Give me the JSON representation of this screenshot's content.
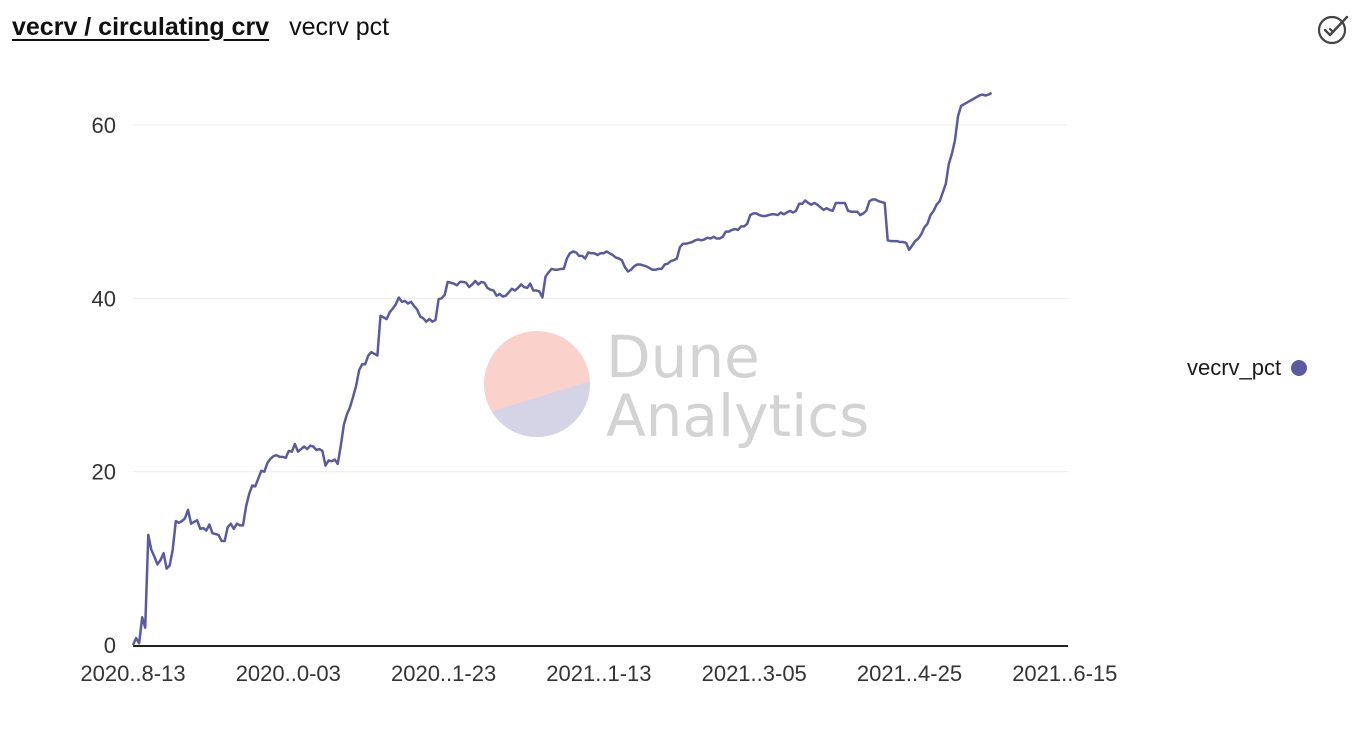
{
  "header": {
    "title": "vecrv / circulating crv",
    "subtitle": "vecrv pct"
  },
  "icons": {
    "status": "check-circle-icon"
  },
  "watermark": {
    "line1": "Dune",
    "line2": "Analytics"
  },
  "colors": {
    "line": "#5a5aa0",
    "grid": "#ebebeb",
    "axis": "#222222",
    "wm_top": "#fbd2cb",
    "wm_bottom": "#d4d4e6"
  },
  "chart_data": {
    "type": "line",
    "xlabel": "",
    "ylabel": "",
    "x_ticks": [
      "2020..8-13",
      "2020..0-03",
      "2020..1-23",
      "2021..1-13",
      "2021..3-05",
      "2021..4-25",
      "2021..6-15"
    ],
    "y_ticks": [
      0,
      20,
      40,
      60
    ],
    "ylim": [
      0,
      65
    ],
    "xlim": [
      0,
      306
    ],
    "grid": true,
    "legend_position": "right",
    "series": [
      {
        "name": "vecrv_pct",
        "points": [
          [
            0,
            0
          ],
          [
            1,
            0.8
          ],
          [
            2,
            0.2
          ],
          [
            3,
            3.2
          ],
          [
            4,
            2.0
          ],
          [
            5,
            12.7
          ],
          [
            6,
            11.0
          ],
          [
            7,
            10.2
          ],
          [
            8,
            9.3
          ],
          [
            9,
            9.8
          ],
          [
            10,
            10.6
          ],
          [
            11,
            8.8
          ],
          [
            12,
            9.2
          ],
          [
            13,
            11.0
          ],
          [
            14,
            14.3
          ],
          [
            15,
            14.1
          ],
          [
            16,
            14.3
          ],
          [
            17,
            14.6
          ],
          [
            18,
            15.6
          ],
          [
            19,
            14.0
          ],
          [
            20,
            14.2
          ],
          [
            21,
            14.4
          ],
          [
            22,
            13.4
          ],
          [
            23,
            13.5
          ],
          [
            24,
            13.2
          ],
          [
            25,
            13.9
          ],
          [
            26,
            12.9
          ],
          [
            27,
            12.8
          ],
          [
            28,
            12.7
          ],
          [
            29,
            12.0
          ],
          [
            30,
            12.0
          ],
          [
            31,
            13.6
          ],
          [
            32,
            14.0
          ],
          [
            33,
            13.4
          ],
          [
            34,
            14.0
          ],
          [
            35,
            13.8
          ],
          [
            36,
            13.8
          ],
          [
            37,
            16.0
          ],
          [
            38,
            17.4
          ],
          [
            39,
            18.4
          ],
          [
            40,
            18.3
          ],
          [
            41,
            19.2
          ],
          [
            42,
            20.1
          ],
          [
            43,
            20.0
          ],
          [
            44,
            21.0
          ],
          [
            45,
            21.5
          ],
          [
            46,
            21.8
          ],
          [
            47,
            21.9
          ],
          [
            48,
            21.7
          ],
          [
            49,
            21.7
          ],
          [
            50,
            21.6
          ],
          [
            51,
            22.4
          ],
          [
            52,
            22.3
          ],
          [
            53,
            23.2
          ],
          [
            54,
            22.3
          ],
          [
            55,
            22.6
          ],
          [
            56,
            22.9
          ],
          [
            57,
            22.6
          ],
          [
            58,
            23.0
          ],
          [
            59,
            22.9
          ],
          [
            60,
            22.5
          ],
          [
            61,
            22.6
          ],
          [
            62,
            22.4
          ],
          [
            63,
            20.7
          ],
          [
            64,
            21.3
          ],
          [
            65,
            21.2
          ],
          [
            66,
            21.4
          ],
          [
            67,
            20.9
          ],
          [
            68,
            23.0
          ],
          [
            69,
            25.4
          ],
          [
            70,
            26.6
          ],
          [
            71,
            27.4
          ],
          [
            72,
            28.6
          ],
          [
            73,
            29.9
          ],
          [
            74,
            31.7
          ],
          [
            75,
            32.4
          ],
          [
            76,
            32.4
          ],
          [
            77,
            33.4
          ],
          [
            78,
            33.8
          ],
          [
            79,
            33.6
          ],
          [
            80,
            33.4
          ],
          [
            81,
            38.0
          ],
          [
            82,
            37.8
          ],
          [
            83,
            37.6
          ],
          [
            84,
            38.4
          ],
          [
            85,
            38.8
          ],
          [
            86,
            39.3
          ],
          [
            87,
            40.1
          ],
          [
            88,
            39.6
          ],
          [
            89,
            39.7
          ],
          [
            90,
            39.4
          ],
          [
            91,
            39.6
          ],
          [
            92,
            39.1
          ],
          [
            93,
            38.7
          ],
          [
            94,
            37.9
          ],
          [
            95,
            37.7
          ],
          [
            96,
            37.3
          ],
          [
            97,
            37.6
          ],
          [
            98,
            37.3
          ],
          [
            99,
            37.5
          ],
          [
            100,
            39.9
          ],
          [
            101,
            40.0
          ],
          [
            102,
            40.4
          ],
          [
            103,
            41.9
          ],
          [
            104,
            41.8
          ],
          [
            105,
            41.7
          ],
          [
            106,
            41.5
          ],
          [
            107,
            41.9
          ],
          [
            108,
            41.9
          ],
          [
            109,
            41.8
          ],
          [
            110,
            41.3
          ],
          [
            111,
            41.6
          ],
          [
            112,
            42.0
          ],
          [
            113,
            41.6
          ],
          [
            114,
            41.9
          ],
          [
            115,
            41.8
          ],
          [
            116,
            41.2
          ],
          [
            117,
            41.0
          ],
          [
            118,
            40.9
          ],
          [
            119,
            40.3
          ],
          [
            120,
            40.5
          ],
          [
            121,
            40.2
          ],
          [
            122,
            40.3
          ],
          [
            123,
            40.7
          ],
          [
            124,
            41.1
          ],
          [
            125,
            40.9
          ],
          [
            126,
            41.2
          ],
          [
            127,
            41.6
          ],
          [
            128,
            41.3
          ],
          [
            129,
            41.2
          ],
          [
            130,
            41.7
          ],
          [
            131,
            40.9
          ],
          [
            132,
            40.9
          ],
          [
            133,
            40.8
          ],
          [
            134,
            40.1
          ],
          [
            135,
            42.5
          ],
          [
            136,
            43.0
          ],
          [
            137,
            43.4
          ],
          [
            138,
            43.3
          ],
          [
            139,
            43.3
          ],
          [
            140,
            43.4
          ],
          [
            141,
            43.4
          ],
          [
            142,
            44.6
          ],
          [
            143,
            45.2
          ],
          [
            144,
            45.4
          ],
          [
            145,
            45.3
          ],
          [
            146,
            44.9
          ],
          [
            147,
            44.9
          ],
          [
            148,
            44.6
          ],
          [
            149,
            45.3
          ],
          [
            150,
            45.2
          ],
          [
            151,
            45.2
          ],
          [
            152,
            45.0
          ],
          [
            153,
            45.2
          ],
          [
            154,
            45.2
          ],
          [
            155,
            45.4
          ],
          [
            156,
            45.2
          ],
          [
            157,
            45.0
          ],
          [
            158,
            44.7
          ],
          [
            159,
            44.6
          ],
          [
            160,
            44.4
          ],
          [
            161,
            43.6
          ],
          [
            162,
            43.1
          ],
          [
            163,
            43.3
          ],
          [
            164,
            43.7
          ],
          [
            165,
            43.9
          ],
          [
            166,
            43.9
          ],
          [
            167,
            43.8
          ],
          [
            168,
            43.7
          ],
          [
            169,
            43.5
          ],
          [
            170,
            43.3
          ],
          [
            171,
            43.3
          ],
          [
            172,
            43.4
          ],
          [
            173,
            43.4
          ],
          [
            174,
            43.9
          ],
          [
            175,
            44.0
          ],
          [
            176,
            44.3
          ],
          [
            177,
            44.4
          ],
          [
            178,
            44.6
          ],
          [
            179,
            45.9
          ],
          [
            180,
            46.3
          ],
          [
            181,
            46.3
          ],
          [
            182,
            46.4
          ],
          [
            183,
            46.5
          ],
          [
            184,
            46.7
          ],
          [
            185,
            46.8
          ],
          [
            186,
            46.7
          ],
          [
            187,
            46.8
          ],
          [
            188,
            47.0
          ],
          [
            189,
            46.9
          ],
          [
            190,
            47.1
          ],
          [
            191,
            46.9
          ],
          [
            192,
            46.9
          ],
          [
            193,
            47.1
          ],
          [
            194,
            47.7
          ],
          [
            195,
            47.7
          ],
          [
            196,
            47.9
          ],
          [
            197,
            48.0
          ],
          [
            198,
            47.9
          ],
          [
            199,
            48.3
          ],
          [
            200,
            48.3
          ],
          [
            201,
            48.6
          ],
          [
            202,
            49.6
          ],
          [
            203,
            49.8
          ],
          [
            204,
            49.8
          ],
          [
            205,
            49.6
          ],
          [
            206,
            49.5
          ],
          [
            207,
            49.5
          ],
          [
            208,
            49.6
          ],
          [
            209,
            49.7
          ],
          [
            210,
            49.7
          ],
          [
            211,
            49.6
          ],
          [
            212,
            49.9
          ],
          [
            213,
            49.7
          ],
          [
            214,
            49.9
          ],
          [
            215,
            50.1
          ],
          [
            216,
            49.9
          ],
          [
            217,
            50.1
          ],
          [
            218,
            50.9
          ],
          [
            219,
            50.9
          ],
          [
            220,
            51.3
          ],
          [
            221,
            51.0
          ],
          [
            222,
            50.8
          ],
          [
            223,
            51.0
          ],
          [
            224,
            50.8
          ],
          [
            225,
            50.5
          ],
          [
            226,
            50.2
          ],
          [
            227,
            50.4
          ],
          [
            228,
            50.2
          ],
          [
            229,
            50.1
          ],
          [
            230,
            51.0
          ],
          [
            231,
            51.0
          ],
          [
            232,
            51.0
          ],
          [
            233,
            51.0
          ],
          [
            234,
            50.1
          ],
          [
            235,
            50.0
          ],
          [
            236,
            50.0
          ],
          [
            237,
            50.0
          ],
          [
            238,
            49.6
          ],
          [
            239,
            49.8
          ],
          [
            240,
            50.1
          ],
          [
            241,
            51.2
          ],
          [
            242,
            51.4
          ],
          [
            243,
            51.4
          ],
          [
            244,
            51.2
          ],
          [
            245,
            51.1
          ],
          [
            246,
            51.0
          ],
          [
            247,
            46.7
          ],
          [
            248,
            46.6
          ],
          [
            249,
            46.6
          ],
          [
            250,
            46.6
          ],
          [
            251,
            46.5
          ],
          [
            252,
            46.5
          ],
          [
            253,
            46.4
          ],
          [
            254,
            45.6
          ],
          [
            255,
            46.1
          ],
          [
            256,
            46.6
          ],
          [
            257,
            46.9
          ],
          [
            258,
            47.4
          ],
          [
            259,
            48.2
          ],
          [
            260,
            48.6
          ],
          [
            261,
            49.6
          ],
          [
            262,
            50.1
          ],
          [
            263,
            50.8
          ],
          [
            264,
            51.2
          ],
          [
            265,
            52.2
          ],
          [
            266,
            53.2
          ],
          [
            267,
            55.5
          ],
          [
            268,
            56.7
          ],
          [
            269,
            58.2
          ],
          [
            270,
            61.0
          ],
          [
            271,
            62.2
          ],
          [
            272,
            62.4
          ],
          [
            273,
            62.6
          ],
          [
            274,
            62.8
          ],
          [
            275,
            63.0
          ],
          [
            276,
            63.2
          ],
          [
            277,
            63.4
          ],
          [
            278,
            63.5
          ],
          [
            279,
            63.4
          ],
          [
            280,
            63.5
          ],
          [
            281,
            63.7
          ]
        ]
      }
    ]
  }
}
